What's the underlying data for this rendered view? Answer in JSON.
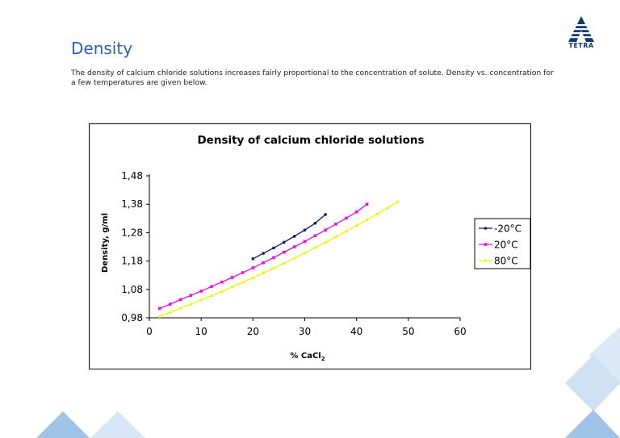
{
  "logo": {
    "text": "TETRA",
    "color": "#0f3a78"
  },
  "page": {
    "title": "Density",
    "intro": "The density of calcium chloride solutions increases fairly proportional to the concentration of solute. Density vs. concentration for a few temperatures are given below."
  },
  "chart_data": {
    "type": "line",
    "title": "Density of calcium chloride solutions",
    "xlabel": "% CaCl",
    "xlabel_sub": "2",
    "ylabel": "Density, g/ml",
    "xlim": [
      0,
      60
    ],
    "ylim": [
      0.98,
      1.48
    ],
    "xticks": [
      "0",
      "10",
      "20",
      "30",
      "40",
      "50",
      "60"
    ],
    "yticks": [
      "0,98",
      "1,08",
      "1,18",
      "1,28",
      "1,38",
      "1,48"
    ],
    "grid": false,
    "legend_position": "right",
    "series": [
      {
        "name": "-20°C",
        "color": "#0a1a66",
        "x": [
          20,
          22,
          24,
          26,
          28,
          30,
          32,
          34
        ],
        "y": [
          1.188,
          1.207,
          1.226,
          1.246,
          1.267,
          1.289,
          1.313,
          1.344
        ]
      },
      {
        "name": "20°C",
        "color": "#e60ee6",
        "x": [
          2,
          4,
          6,
          8,
          10,
          12,
          14,
          16,
          18,
          20,
          22,
          24,
          26,
          28,
          30,
          32,
          34,
          36,
          38,
          40,
          42
        ],
        "y": [
          1.013,
          1.028,
          1.044,
          1.059,
          1.074,
          1.09,
          1.106,
          1.122,
          1.139,
          1.156,
          1.174,
          1.192,
          1.211,
          1.23,
          1.249,
          1.269,
          1.289,
          1.31,
          1.331,
          1.353,
          1.38
        ]
      },
      {
        "name": "80°C",
        "color": "#f2f200",
        "x": [
          2,
          4,
          6,
          8,
          10,
          12,
          14,
          16,
          18,
          20,
          22,
          24,
          26,
          28,
          30,
          32,
          34,
          36,
          38,
          40,
          42,
          44,
          46,
          48
        ],
        "y": [
          0.985,
          0.999,
          1.014,
          1.028,
          1.043,
          1.058,
          1.073,
          1.089,
          1.105,
          1.121,
          1.138,
          1.155,
          1.172,
          1.19,
          1.208,
          1.227,
          1.246,
          1.265,
          1.285,
          1.305,
          1.325,
          1.346,
          1.367,
          1.389
        ]
      }
    ]
  },
  "colors": {
    "title_blue": "#2a60b8",
    "deco_blue": "#8fb8e4",
    "deco_light": "#d6e6f6"
  }
}
